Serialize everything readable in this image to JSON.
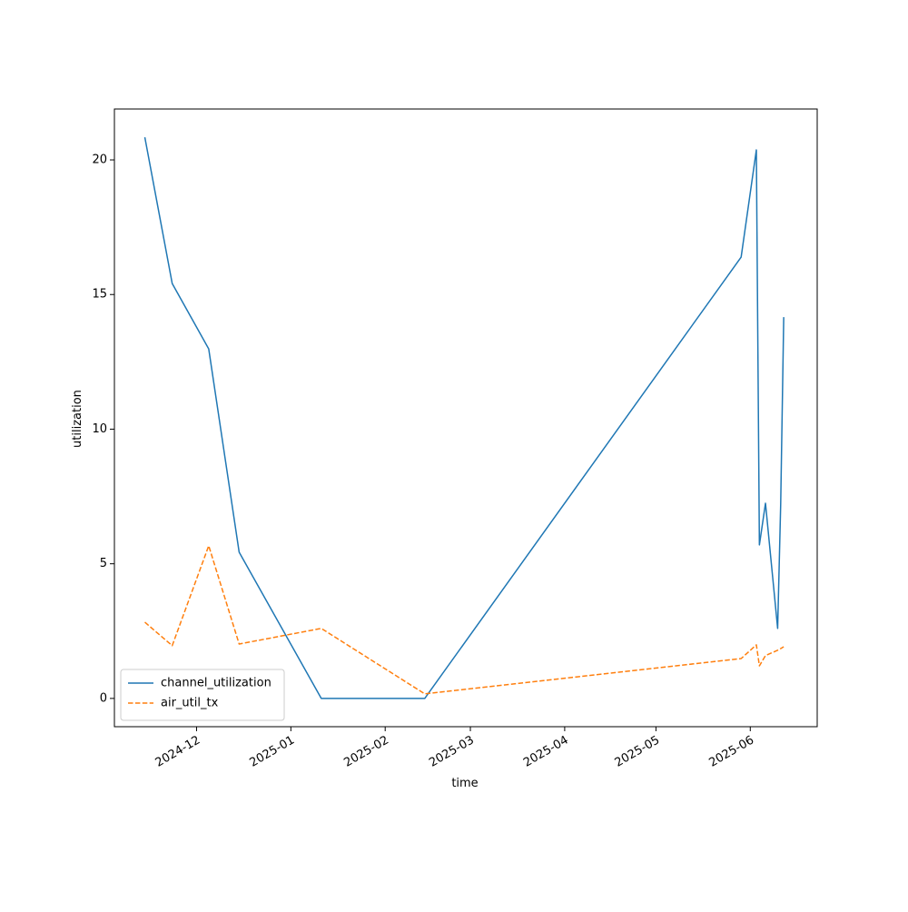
{
  "chart_data": {
    "type": "line",
    "x_label": "time",
    "y_label": "utilization",
    "x": [
      "2024-11-14",
      "2024-11-23",
      "2024-12-05",
      "2024-12-15",
      "2025-01-11",
      "2025-02-14",
      "2025-05-29",
      "2025-06-03",
      "2025-06-04",
      "2025-06-06",
      "2025-06-10",
      "2025-06-11",
      "2025-06-12"
    ],
    "series": [
      {
        "name": "channel_utilization",
        "color": "#1f77b4",
        "linestyle": "solid",
        "values": [
          20.84,
          15.41,
          12.98,
          5.43,
          0,
          0,
          16.39,
          20.37,
          5.7,
          7.25,
          2.6,
          7.22,
          14.16
        ]
      },
      {
        "name": "air_util_tx",
        "color": "#ff7f0e",
        "linestyle": "dashed",
        "values": [
          2.83,
          1.96,
          5.67,
          2.02,
          2.6,
          0.17,
          1.48,
          1.99,
          1.21,
          1.59,
          1.79,
          1.85,
          1.92
        ]
      }
    ],
    "xlim": [
      "2024-11-04",
      "2025-06-23"
    ],
    "xticks": [
      {
        "value": "2024-12-01",
        "label": "2024-12"
      },
      {
        "value": "2025-01-01",
        "label": "2025-01"
      },
      {
        "value": "2025-02-01",
        "label": "2025-02"
      },
      {
        "value": "2025-03-01",
        "label": "2025-03"
      },
      {
        "value": "2025-04-01",
        "label": "2025-04"
      },
      {
        "value": "2025-05-01",
        "label": "2025-05"
      },
      {
        "value": "2025-06-01",
        "label": "2025-06"
      }
    ],
    "ylim": [
      -1.05,
      21.89
    ],
    "yticks": [
      0,
      5,
      10,
      15,
      20
    ],
    "legend": "lower left"
  }
}
